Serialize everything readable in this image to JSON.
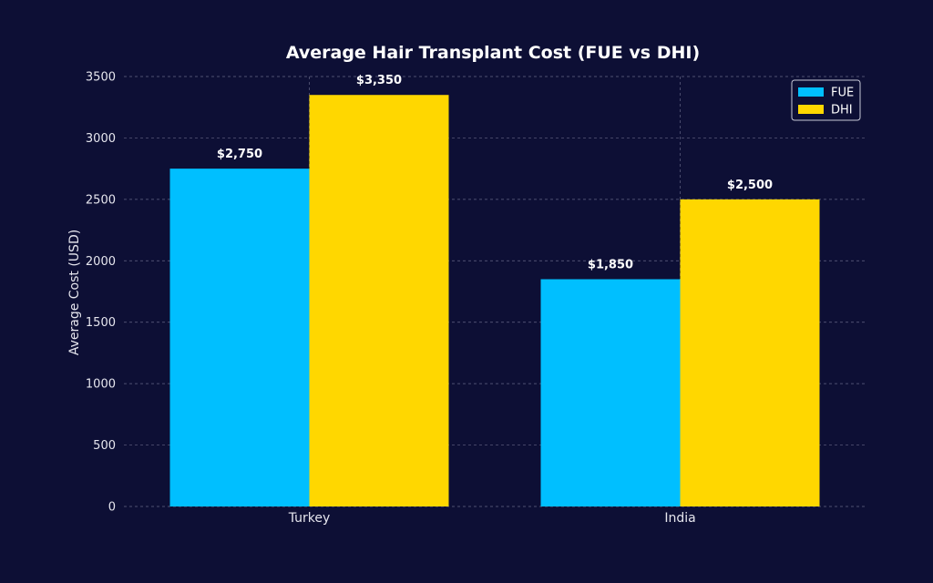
{
  "chart_data": {
    "type": "bar",
    "title": "Average Hair Transplant Cost (FUE vs DHI)",
    "xlabel": "",
    "ylabel": "Average Cost (USD)",
    "categories": [
      "Turkey",
      "India"
    ],
    "series": [
      {
        "name": "FUE",
        "values": [
          2750,
          1850
        ],
        "labels": [
          "$2,750",
          "$1,850"
        ],
        "color": "#00bfff"
      },
      {
        "name": "DHI",
        "values": [
          3350,
          2500
        ],
        "labels": [
          "$3,350",
          "$2,500"
        ],
        "color": "#ffd700"
      }
    ],
    "ylim": [
      0,
      3500
    ],
    "yticks": [
      0,
      500,
      1000,
      1500,
      2000,
      2500,
      3000,
      3500
    ],
    "grid": true,
    "legend_position": "top-right"
  }
}
